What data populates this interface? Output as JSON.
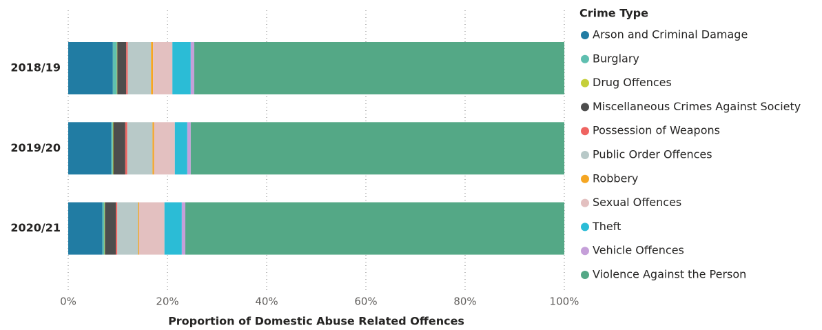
{
  "chart_data": {
    "type": "stacked-barh",
    "x_label": "Proportion of Domestic Abuse Related Offences",
    "legend_title": "Crime Type",
    "legend_position": "right",
    "grid": true,
    "categories": [
      "2018/19",
      "2019/20",
      "2020/21"
    ],
    "xlim": [
      0,
      100
    ],
    "xticks": [
      {
        "value": 0,
        "label": "0%"
      },
      {
        "value": 20,
        "label": "20%"
      },
      {
        "value": 40,
        "label": "40%"
      },
      {
        "value": 60,
        "label": "60%"
      },
      {
        "value": 80,
        "label": "80%"
      },
      {
        "value": 100,
        "label": "100%"
      }
    ],
    "series": [
      {
        "name": "Arson and Criminal Damage",
        "color": "#217ca3",
        "values": [
          9.0,
          8.7,
          6.9
        ]
      },
      {
        "name": "Burglary",
        "color": "#5fbfb0",
        "values": [
          0.8,
          0.3,
          0.4
        ]
      },
      {
        "name": "Drug Offences",
        "color": "#c5cf3a",
        "values": [
          0.1,
          0.1,
          0.1
        ]
      },
      {
        "name": "Miscellaneous Crimes Against Society",
        "color": "#4d4d4d",
        "values": [
          1.8,
          2.4,
          2.2
        ]
      },
      {
        "name": "Possession of Weapons",
        "color": "#ef6461",
        "values": [
          0.3,
          0.4,
          0.3
        ]
      },
      {
        "name": "Public Order Offences",
        "color": "#b8c9c8",
        "values": [
          4.7,
          5.1,
          4.2
        ]
      },
      {
        "name": "Robbery",
        "color": "#f5a623",
        "values": [
          0.4,
          0.3,
          0.2
        ]
      },
      {
        "name": "Sexual Offences",
        "color": "#e3c0c0",
        "values": [
          3.9,
          4.2,
          5.1
        ]
      },
      {
        "name": "Theft",
        "color": "#2bbcd6",
        "values": [
          3.7,
          2.5,
          3.5
        ]
      },
      {
        "name": "Vehicle Offences",
        "color": "#c59fd9",
        "values": [
          0.7,
          0.7,
          0.7
        ]
      },
      {
        "name": "Violence Against the Person",
        "color": "#54a886",
        "values": [
          74.6,
          75.3,
          76.4
        ]
      }
    ]
  }
}
